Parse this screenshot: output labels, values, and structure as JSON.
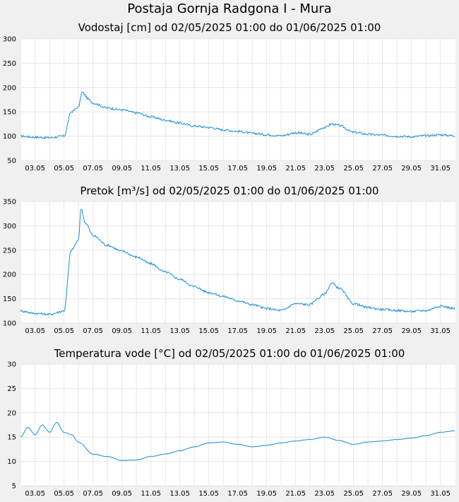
{
  "page": {
    "title": "Postaja Gornja Radgona I - Mura"
  },
  "chart_data": [
    {
      "type": "line",
      "title": "Vodostaj [cm] od 02/05/2025 01:00 do 01/06/2025 01:00",
      "xlabel": "",
      "ylabel": "",
      "ylim": [
        50,
        300
      ],
      "y_ticks": [
        50,
        100,
        150,
        200,
        250,
        300
      ],
      "x_range": [
        "2025-05-02 01:00",
        "2025-06-01 01:00"
      ],
      "x_ticks": [
        "03.05",
        "05.05",
        "07.05",
        "09.05",
        "11.05",
        "13.05",
        "15.05",
        "17.05",
        "19.05",
        "21.05",
        "23.05",
        "25.05",
        "27.05",
        "29.05",
        "31.05"
      ],
      "grid": true,
      "color": "#1a8fd3",
      "series": [
        {
          "x": [
            "2025-05-02",
            "2025-05-03",
            "2025-05-04",
            "2025-05-05",
            "2025-05-05 12:00",
            "2025-05-06",
            "2025-05-06 06:00",
            "2025-05-06 18:00",
            "2025-05-07",
            "2025-05-08",
            "2025-05-09",
            "2025-05-10",
            "2025-05-11",
            "2025-05-12",
            "2025-05-13",
            "2025-05-14",
            "2025-05-15",
            "2025-05-16",
            "2025-05-17",
            "2025-05-18",
            "2025-05-19",
            "2025-05-20",
            "2025-05-21",
            "2025-05-22",
            "2025-05-23",
            "2025-05-23 12:00",
            "2025-05-24",
            "2025-05-25",
            "2025-05-26",
            "2025-05-27",
            "2025-05-28",
            "2025-05-29",
            "2025-05-30",
            "2025-05-31",
            "2025-06-01"
          ],
          "values": [
            100,
            98,
            97,
            100,
            150,
            160,
            190,
            175,
            168,
            158,
            154,
            148,
            140,
            133,
            127,
            121,
            118,
            113,
            110,
            106,
            103,
            101,
            107,
            104,
            118,
            125,
            122,
            108,
            104,
            102,
            100,
            99,
            101,
            103,
            101
          ]
        }
      ]
    },
    {
      "type": "line",
      "title": "Pretok [m³/s] od 02/05/2025 01:00 do 01/06/2025 01:00",
      "xlabel": "",
      "ylabel": "",
      "ylim": [
        100,
        350
      ],
      "y_ticks": [
        100,
        150,
        200,
        250,
        300,
        350
      ],
      "x_range": [
        "2025-05-02 01:00",
        "2025-06-01 01:00"
      ],
      "x_ticks": [
        "03.05",
        "05.05",
        "07.05",
        "09.05",
        "11.05",
        "13.05",
        "15.05",
        "17.05",
        "19.05",
        "21.05",
        "23.05",
        "25.05",
        "27.05",
        "29.05",
        "31.05"
      ],
      "grid": true,
      "color": "#1a8fd3",
      "series": [
        {
          "x": [
            "2025-05-02",
            "2025-05-03",
            "2025-05-04",
            "2025-05-05",
            "2025-05-05 12:00",
            "2025-05-06",
            "2025-05-06 04:00",
            "2025-05-06 12:00",
            "2025-05-07",
            "2025-05-08",
            "2025-05-09",
            "2025-05-10",
            "2025-05-11",
            "2025-05-12",
            "2025-05-13",
            "2025-05-14",
            "2025-05-15",
            "2025-05-16",
            "2025-05-17",
            "2025-05-18",
            "2025-05-19",
            "2025-05-20",
            "2025-05-21",
            "2025-05-22",
            "2025-05-22 12:00",
            "2025-05-23",
            "2025-05-23 12:00",
            "2025-05-24",
            "2025-05-25",
            "2025-05-26",
            "2025-05-27",
            "2025-05-28",
            "2025-05-29",
            "2025-05-30",
            "2025-05-31",
            "2025-06-01"
          ],
          "values": [
            125,
            120,
            118,
            125,
            250,
            270,
            335,
            305,
            280,
            260,
            248,
            236,
            222,
            205,
            190,
            175,
            163,
            155,
            146,
            138,
            130,
            126,
            140,
            138,
            150,
            160,
            182,
            172,
            140,
            132,
            128,
            126,
            124,
            126,
            135,
            130
          ]
        }
      ]
    },
    {
      "type": "line",
      "title": "Temperatura vode [°C] od 02/05/2025 01:00 do 01/06/2025 01:00",
      "xlabel": "",
      "ylabel": "",
      "ylim": [
        5,
        30
      ],
      "y_ticks": [
        5,
        10,
        15,
        20,
        25,
        30
      ],
      "x_range": [
        "2025-05-02 01:00",
        "2025-06-01 01:00"
      ],
      "x_ticks": [
        "03.05",
        "05.05",
        "07.05",
        "09.05",
        "11.05",
        "13.05",
        "15.05",
        "17.05",
        "19.05",
        "21.05",
        "23.05",
        "25.05",
        "27.05",
        "29.05",
        "31.05"
      ],
      "grid": true,
      "color": "#1a8fd3",
      "series": [
        {
          "x": [
            "2025-05-02",
            "2025-05-02 12:00",
            "2025-05-03",
            "2025-05-03 12:00",
            "2025-05-04",
            "2025-05-04 12:00",
            "2025-05-05",
            "2025-05-05 12:00",
            "2025-05-06",
            "2025-05-07",
            "2025-05-08",
            "2025-05-09",
            "2025-05-10",
            "2025-05-11",
            "2025-05-12",
            "2025-05-13",
            "2025-05-14",
            "2025-05-15",
            "2025-05-16",
            "2025-05-17",
            "2025-05-18",
            "2025-05-19",
            "2025-05-20",
            "2025-05-21",
            "2025-05-22",
            "2025-05-23",
            "2025-05-24",
            "2025-05-25",
            "2025-05-26",
            "2025-05-27",
            "2025-05-28",
            "2025-05-29",
            "2025-05-30",
            "2025-05-31",
            "2025-06-01"
          ],
          "values": [
            15,
            17,
            15.5,
            17.5,
            16,
            18,
            16,
            15.5,
            14,
            11.5,
            11,
            10.2,
            10.3,
            11,
            11.5,
            12.2,
            13,
            13.8,
            14,
            13.5,
            13,
            13.3,
            13.8,
            14.2,
            14.5,
            15,
            14.3,
            13.5,
            14,
            14.2,
            14.5,
            14.8,
            15.3,
            16,
            16.3
          ]
        }
      ]
    }
  ]
}
